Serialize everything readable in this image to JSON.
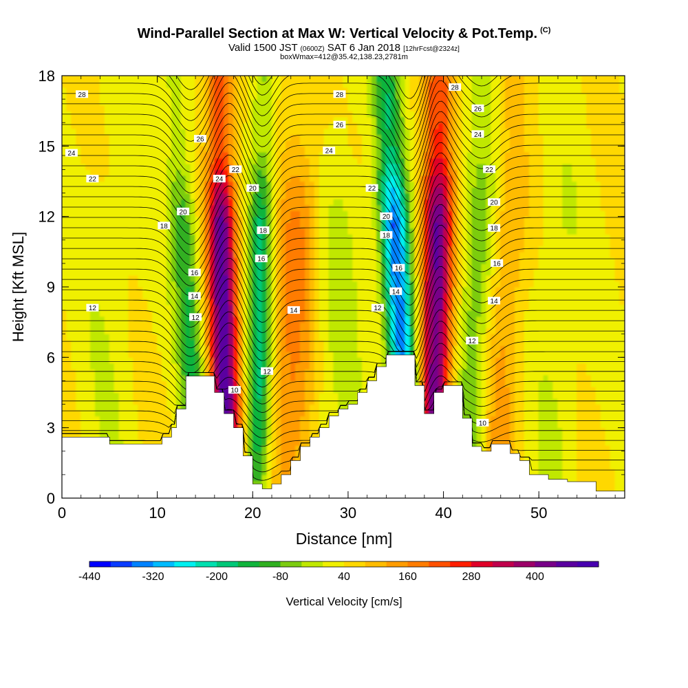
{
  "chart_data": {
    "type": "heatmap",
    "title": "Wind-Parallel Section at Max W: Vertical Velocity & Pot.Temp.",
    "title_copyright": "(C)",
    "subtitle_valid": "Valid 1500 JST",
    "subtitle_utc": "(0600Z)",
    "subtitle_date": "SAT 6 Jan 2018",
    "subtitle_fcst": "[12hrFcst@2324z]",
    "subtitle_box": "boxWmax=412@35.42,138.23,2781m",
    "xlabel": "Distance [nm]",
    "ylabel": "Height [Kft MSL]",
    "xlim": [
      0,
      59
    ],
    "ylim": [
      0,
      18
    ],
    "x_ticks": [
      "0",
      "10",
      "20",
      "30",
      "40",
      "50"
    ],
    "x_tick_values": [
      0,
      10,
      20,
      30,
      40,
      50
    ],
    "y_ticks": [
      "0",
      "3",
      "6",
      "9",
      "12",
      "15",
      "18"
    ],
    "y_tick_values": [
      0,
      3,
      6,
      9,
      12,
      15,
      18
    ],
    "colorbar": {
      "label": "Vertical Velocity [cm/s]",
      "tick_labels": [
        "-440",
        "-320",
        "-200",
        "-80",
        "40",
        "160",
        "280",
        "400"
      ],
      "tick_values": [
        -440,
        -320,
        -200,
        -80,
        40,
        160,
        280,
        400
      ],
      "range": [
        -440,
        520
      ],
      "colors": [
        "#0000ff",
        "#0a3cff",
        "#0082ff",
        "#00bcff",
        "#00f0f0",
        "#00e0b0",
        "#00c878",
        "#10b43c",
        "#30b020",
        "#7ccc10",
        "#c0e800",
        "#f0f000",
        "#ffd800",
        "#ffbc00",
        "#ff9c00",
        "#ff7c00",
        "#ff5000",
        "#ff1e00",
        "#e00028",
        "#c0004c",
        "#9c0068",
        "#780088",
        "#5a00a0",
        "#4800b0"
      ]
    },
    "terrain_profile": {
      "x": [
        0,
        4,
        5,
        10,
        10.5,
        11.5,
        12,
        13,
        15,
        16,
        17,
        18,
        19,
        20,
        21,
        22,
        23,
        24,
        25,
        26,
        27,
        28,
        29,
        30,
        31,
        32,
        33,
        34,
        35,
        36,
        37,
        38,
        39,
        40,
        41,
        42,
        43,
        44,
        45,
        46,
        47,
        48,
        49,
        50,
        51,
        52,
        53,
        54,
        55,
        56,
        57,
        59
      ],
      "height_kft": [
        2.6,
        2.6,
        2.3,
        2.3,
        2.6,
        3.0,
        3.8,
        5.2,
        5.2,
        4.5,
        3.6,
        3.0,
        1.8,
        0.6,
        0.4,
        0.6,
        1.0,
        1.6,
        2.2,
        2.6,
        3.0,
        3.5,
        3.8,
        4.0,
        4.5,
        5.0,
        5.6,
        6.1,
        6.1,
        6.1,
        4.8,
        3.6,
        4.5,
        4.8,
        4.8,
        3.4,
        2.2,
        2.0,
        2.3,
        2.3,
        1.9,
        1.6,
        1.0,
        1.0,
        0.8,
        0.8,
        0.7,
        0.7,
        0.7,
        0.3,
        0.3,
        0.3
      ]
    },
    "vertical_velocity_plumes": [
      {
        "x_bottom": 14.5,
        "x_top": 11.8,
        "w_max": -160,
        "width_nm": 1.4
      },
      {
        "x_bottom": 17.3,
        "x_top": 16.5,
        "w_max": 420,
        "width_nm": 1.5
      },
      {
        "x_bottom": 20.5,
        "x_top": 21.2,
        "w_max": -220,
        "width_nm": 1.3
      },
      {
        "x_bottom": 23.5,
        "x_top": 25.5,
        "w_max": 130,
        "width_nm": 2.5
      },
      {
        "x_bottom": 36.5,
        "x_top": 34.0,
        "w_max": -400,
        "width_nm": 1.5
      },
      {
        "x_bottom": 39.0,
        "x_top": 39.6,
        "w_max": 412,
        "width_nm": 1.6
      },
      {
        "x_bottom": 42.5,
        "x_top": 44.5,
        "w_max": -120,
        "width_nm": 1.8
      },
      {
        "x_bottom": 45.5,
        "x_top": 47.5,
        "w_max": 90,
        "width_nm": 2.0
      },
      {
        "x_bottom": 28.0,
        "x_top": 29.5,
        "w_max": -50,
        "width_nm": 3.0
      },
      {
        "x_bottom": 51.5,
        "x_top": 52.5,
        "w_max": -40,
        "width_nm": 2.5
      },
      {
        "x_bottom": 4.5,
        "x_top": 5.5,
        "w_max": -30,
        "width_nm": 3.0
      }
    ],
    "contour_labels": [
      {
        "text": "28",
        "x": 2.1,
        "y": 17.2
      },
      {
        "text": "24",
        "x": 1.0,
        "y": 14.7
      },
      {
        "text": "22",
        "x": 3.2,
        "y": 13.6
      },
      {
        "text": "12",
        "x": 3.2,
        "y": 8.1
      },
      {
        "text": "26",
        "x": 14.5,
        "y": 15.3
      },
      {
        "text": "24",
        "x": 16.5,
        "y": 13.6
      },
      {
        "text": "22",
        "x": 18.2,
        "y": 14.0
      },
      {
        "text": "20",
        "x": 12.7,
        "y": 12.2
      },
      {
        "text": "18",
        "x": 10.7,
        "y": 11.6
      },
      {
        "text": "16",
        "x": 13.9,
        "y": 9.6
      },
      {
        "text": "14",
        "x": 13.9,
        "y": 8.6
      },
      {
        "text": "12",
        "x": 14.0,
        "y": 7.7
      },
      {
        "text": "20",
        "x": 20.0,
        "y": 13.2
      },
      {
        "text": "18",
        "x": 21.1,
        "y": 11.4
      },
      {
        "text": "16",
        "x": 20.9,
        "y": 10.2
      },
      {
        "text": "14",
        "x": 24.3,
        "y": 8.0
      },
      {
        "text": "12",
        "x": 21.5,
        "y": 5.4
      },
      {
        "text": "10",
        "x": 18.1,
        "y": 4.6
      },
      {
        "text": "28",
        "x": 29.1,
        "y": 17.2
      },
      {
        "text": "26",
        "x": 29.1,
        "y": 15.9
      },
      {
        "text": "24",
        "x": 28.0,
        "y": 14.8
      },
      {
        "text": "22",
        "x": 32.5,
        "y": 13.2
      },
      {
        "text": "20",
        "x": 34.0,
        "y": 12.0
      },
      {
        "text": "18",
        "x": 34.0,
        "y": 11.2
      },
      {
        "text": "16",
        "x": 35.3,
        "y": 9.8
      },
      {
        "text": "14",
        "x": 35.0,
        "y": 8.8
      },
      {
        "text": "12",
        "x": 33.1,
        "y": 8.1
      },
      {
        "text": "28",
        "x": 41.2,
        "y": 17.5
      },
      {
        "text": "26",
        "x": 43.6,
        "y": 16.6
      },
      {
        "text": "24",
        "x": 43.6,
        "y": 15.5
      },
      {
        "text": "22",
        "x": 44.8,
        "y": 14.0
      },
      {
        "text": "20",
        "x": 45.3,
        "y": 12.6
      },
      {
        "text": "18",
        "x": 45.3,
        "y": 11.5
      },
      {
        "text": "16",
        "x": 45.6,
        "y": 10.0
      },
      {
        "text": "14",
        "x": 45.3,
        "y": 8.4
      },
      {
        "text": "12",
        "x": 43.0,
        "y": 6.7
      },
      {
        "text": "10",
        "x": 44.1,
        "y": 3.2
      }
    ]
  }
}
